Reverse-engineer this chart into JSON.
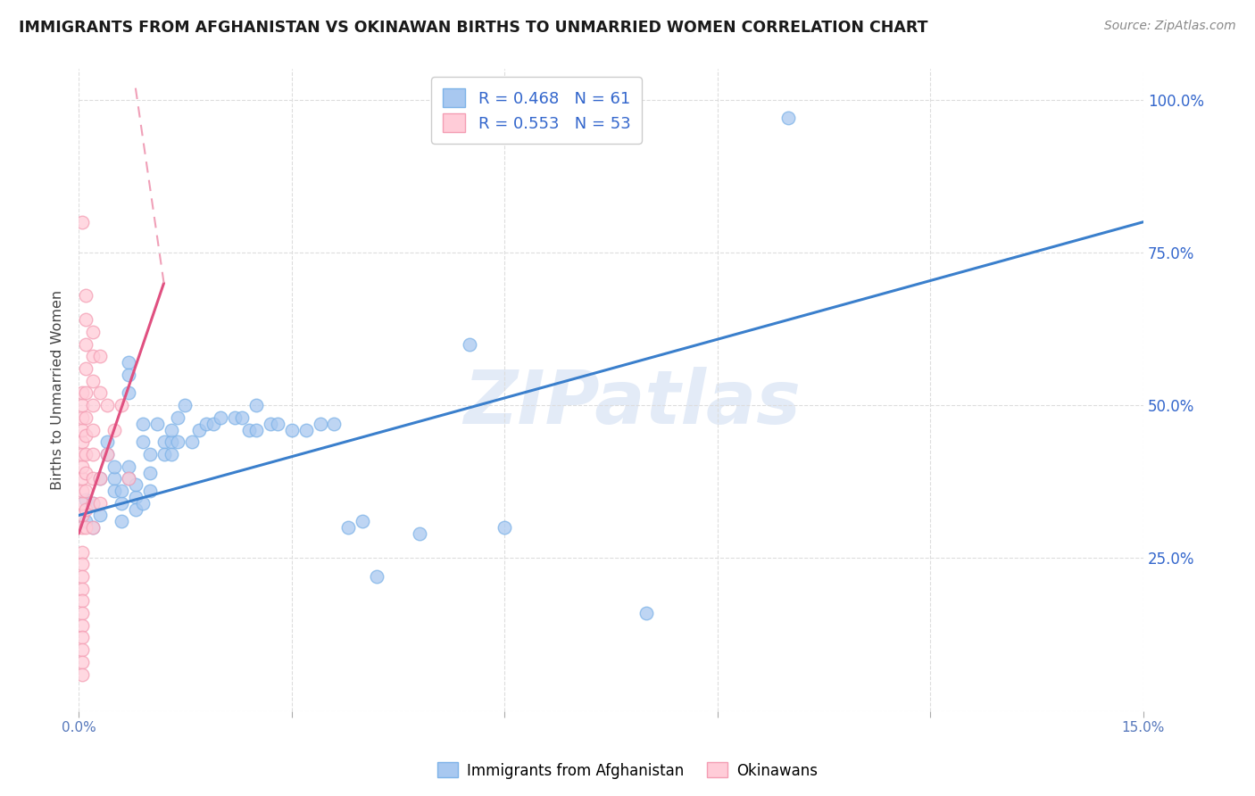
{
  "title": "IMMIGRANTS FROM AFGHANISTAN VS OKINAWAN BIRTHS TO UNMARRIED WOMEN CORRELATION CHART",
  "source": "Source: ZipAtlas.com",
  "ylabel": "Births to Unmarried Women",
  "xlim": [
    0.0,
    0.15
  ],
  "ylim": [
    0.0,
    1.05
  ],
  "color_blue": "#7EB3E8",
  "color_blue_light": "#A8C8F0",
  "color_pink": "#F49EB4",
  "color_blue_line": "#3A7FCC",
  "color_pink_line": "#E05080",
  "color_pink_dash": "#F0A0B8",
  "watermark_text": "ZIPatlas",
  "legend_r1": "R = 0.468",
  "legend_n1": "N = 61",
  "legend_r2": "R = 0.553",
  "legend_n2": "N = 53",
  "legend_label1": "Immigrants from Afghanistan",
  "legend_label2": "Okinawans",
  "blue_scatter": [
    [
      0.001,
      0.345
    ],
    [
      0.002,
      0.34
    ],
    [
      0.002,
      0.3
    ],
    [
      0.003,
      0.38
    ],
    [
      0.003,
      0.32
    ],
    [
      0.004,
      0.44
    ],
    [
      0.004,
      0.42
    ],
    [
      0.005,
      0.38
    ],
    [
      0.005,
      0.4
    ],
    [
      0.005,
      0.36
    ],
    [
      0.006,
      0.34
    ],
    [
      0.006,
      0.36
    ],
    [
      0.006,
      0.31
    ],
    [
      0.007,
      0.38
    ],
    [
      0.007,
      0.4
    ],
    [
      0.007,
      0.57
    ],
    [
      0.007,
      0.55
    ],
    [
      0.007,
      0.52
    ],
    [
      0.008,
      0.35
    ],
    [
      0.008,
      0.37
    ],
    [
      0.008,
      0.33
    ],
    [
      0.009,
      0.44
    ],
    [
      0.009,
      0.47
    ],
    [
      0.009,
      0.34
    ],
    [
      0.01,
      0.39
    ],
    [
      0.01,
      0.42
    ],
    [
      0.01,
      0.36
    ],
    [
      0.011,
      0.47
    ],
    [
      0.012,
      0.44
    ],
    [
      0.012,
      0.42
    ],
    [
      0.013,
      0.44
    ],
    [
      0.013,
      0.42
    ],
    [
      0.013,
      0.46
    ],
    [
      0.014,
      0.44
    ],
    [
      0.014,
      0.48
    ],
    [
      0.015,
      0.5
    ],
    [
      0.016,
      0.44
    ],
    [
      0.017,
      0.46
    ],
    [
      0.018,
      0.47
    ],
    [
      0.019,
      0.47
    ],
    [
      0.02,
      0.48
    ],
    [
      0.022,
      0.48
    ],
    [
      0.023,
      0.48
    ],
    [
      0.024,
      0.46
    ],
    [
      0.025,
      0.5
    ],
    [
      0.025,
      0.46
    ],
    [
      0.027,
      0.47
    ],
    [
      0.028,
      0.47
    ],
    [
      0.03,
      0.46
    ],
    [
      0.032,
      0.46
    ],
    [
      0.034,
      0.47
    ],
    [
      0.036,
      0.47
    ],
    [
      0.038,
      0.3
    ],
    [
      0.04,
      0.31
    ],
    [
      0.042,
      0.22
    ],
    [
      0.048,
      0.29
    ],
    [
      0.055,
      0.6
    ],
    [
      0.06,
      0.3
    ],
    [
      0.08,
      0.16
    ],
    [
      0.1,
      0.97
    ],
    [
      0.001,
      0.31
    ]
  ],
  "pink_scatter": [
    [
      0.0005,
      0.3
    ],
    [
      0.0005,
      0.32
    ],
    [
      0.0005,
      0.34
    ],
    [
      0.0005,
      0.36
    ],
    [
      0.0005,
      0.38
    ],
    [
      0.0005,
      0.4
    ],
    [
      0.0005,
      0.42
    ],
    [
      0.0005,
      0.44
    ],
    [
      0.0005,
      0.46
    ],
    [
      0.0005,
      0.48
    ],
    [
      0.0005,
      0.5
    ],
    [
      0.0005,
      0.52
    ],
    [
      0.0005,
      0.26
    ],
    [
      0.0005,
      0.24
    ],
    [
      0.0005,
      0.22
    ],
    [
      0.0005,
      0.2
    ],
    [
      0.0005,
      0.18
    ],
    [
      0.0005,
      0.16
    ],
    [
      0.0005,
      0.14
    ],
    [
      0.0005,
      0.12
    ],
    [
      0.0005,
      0.1
    ],
    [
      0.0005,
      0.08
    ],
    [
      0.0005,
      0.06
    ],
    [
      0.001,
      0.3
    ],
    [
      0.001,
      0.33
    ],
    [
      0.001,
      0.36
    ],
    [
      0.001,
      0.39
    ],
    [
      0.001,
      0.42
    ],
    [
      0.001,
      0.45
    ],
    [
      0.001,
      0.48
    ],
    [
      0.001,
      0.52
    ],
    [
      0.001,
      0.56
    ],
    [
      0.001,
      0.6
    ],
    [
      0.001,
      0.64
    ],
    [
      0.001,
      0.68
    ],
    [
      0.002,
      0.3
    ],
    [
      0.002,
      0.34
    ],
    [
      0.002,
      0.38
    ],
    [
      0.002,
      0.42
    ],
    [
      0.002,
      0.46
    ],
    [
      0.002,
      0.5
    ],
    [
      0.002,
      0.54
    ],
    [
      0.002,
      0.58
    ],
    [
      0.002,
      0.62
    ],
    [
      0.003,
      0.34
    ],
    [
      0.003,
      0.38
    ],
    [
      0.003,
      0.52
    ],
    [
      0.003,
      0.58
    ],
    [
      0.004,
      0.42
    ],
    [
      0.004,
      0.5
    ],
    [
      0.005,
      0.46
    ],
    [
      0.006,
      0.5
    ],
    [
      0.007,
      0.38
    ]
  ],
  "pink_highpoint": [
    0.0005,
    0.8
  ],
  "blue_trendline": [
    [
      0.0,
      0.32
    ],
    [
      0.15,
      0.8
    ]
  ],
  "pink_trendline": [
    [
      0.0,
      0.29
    ],
    [
      0.012,
      0.7
    ]
  ]
}
